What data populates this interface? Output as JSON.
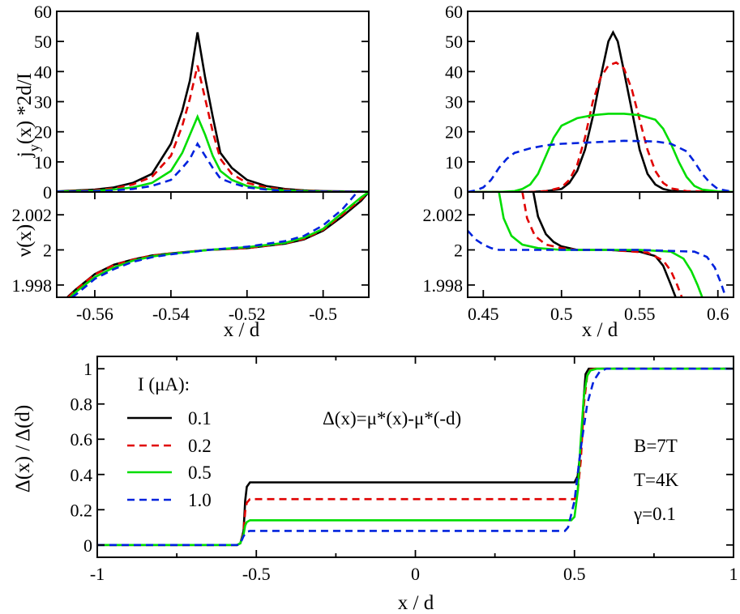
{
  "chart_data": [
    {
      "type": "line",
      "ylabel_main": "j",
      "ylabel_sub": "y",
      "ylabel_rest": "(x) *2d/I",
      "xlim": [
        -0.57,
        -0.488
      ],
      "ylim": [
        0,
        60
      ],
      "yticks": [
        0,
        10,
        20,
        30,
        40,
        50,
        60
      ],
      "ytick_labels": [
        "0",
        "10",
        "20",
        "30",
        "40",
        "50",
        "60"
      ],
      "series": [
        {
          "color": "#000000",
          "dash": "",
          "x": [
            -0.57,
            -0.56,
            -0.555,
            -0.55,
            -0.545,
            -0.54,
            -0.537,
            -0.535,
            -0.533,
            -0.531,
            -0.529,
            -0.527,
            -0.524,
            -0.52,
            -0.515,
            -0.51,
            -0.505,
            -0.5,
            -0.488
          ],
          "y": [
            0.2,
            0.8,
            1.5,
            3,
            6,
            16,
            27,
            37,
            53,
            38,
            25,
            13,
            8,
            4,
            2,
            1,
            0.5,
            0.3,
            0.1
          ]
        },
        {
          "color": "#e00000",
          "dash": "9,6",
          "x": [
            -0.57,
            -0.56,
            -0.555,
            -0.55,
            -0.545,
            -0.54,
            -0.537,
            -0.535,
            -0.533,
            -0.531,
            -0.529,
            -0.527,
            -0.524,
            -0.52,
            -0.515,
            -0.51,
            -0.505,
            -0.5,
            -0.488
          ],
          "y": [
            0.1,
            0.6,
            1.2,
            2.5,
            5,
            12,
            22,
            31,
            42,
            31,
            20,
            11,
            6,
            3,
            1.5,
            0.8,
            0.4,
            0.2,
            0.1
          ]
        },
        {
          "color": "#00dd00",
          "dash": "",
          "x": [
            -0.57,
            -0.56,
            -0.555,
            -0.55,
            -0.545,
            -0.54,
            -0.537,
            -0.535,
            -0.533,
            -0.531,
            -0.529,
            -0.527,
            -0.524,
            -0.52,
            -0.515,
            -0.51,
            -0.505,
            -0.5,
            -0.488
          ],
          "y": [
            0.1,
            0.4,
            0.8,
            1.5,
            3,
            7,
            13,
            19,
            25,
            19,
            12,
            7,
            4,
            2,
            1,
            0.5,
            0.3,
            0.1,
            0.05
          ]
        },
        {
          "color": "#0022dd",
          "dash": "9,6",
          "x": [
            -0.57,
            -0.56,
            -0.555,
            -0.55,
            -0.545,
            -0.54,
            -0.537,
            -0.535,
            -0.533,
            -0.531,
            -0.529,
            -0.527,
            -0.524,
            -0.52,
            -0.515,
            -0.51,
            -0.505,
            -0.5,
            -0.488
          ],
          "y": [
            0.1,
            0.3,
            0.5,
            1,
            2,
            4,
            8,
            11,
            16,
            12,
            8,
            4.5,
            3,
            1.5,
            0.8,
            0.4,
            0.2,
            0.1,
            0.05
          ]
        }
      ]
    },
    {
      "type": "line",
      "xlim": [
        0.44,
        0.61
      ],
      "ylim": [
        0,
        60
      ],
      "yticks": [
        0,
        10,
        20,
        30,
        40,
        50,
        60
      ],
      "ytick_labels": [
        "0",
        "10",
        "20",
        "30",
        "40",
        "50",
        "60"
      ],
      "series": [
        {
          "color": "#000000",
          "dash": "",
          "x": [
            0.44,
            0.48,
            0.49,
            0.5,
            0.505,
            0.51,
            0.515,
            0.52,
            0.525,
            0.53,
            0.533,
            0.536,
            0.54,
            0.545,
            0.55,
            0.555,
            0.56,
            0.565,
            0.57,
            0.58,
            0.61
          ],
          "y": [
            0,
            0,
            0.3,
            1,
            3,
            7,
            14,
            25,
            38,
            50,
            53,
            50,
            40,
            27,
            14,
            6,
            2.5,
            1,
            0.4,
            0.1,
            0
          ]
        },
        {
          "color": "#e00000",
          "dash": "9,6",
          "x": [
            0.44,
            0.48,
            0.49,
            0.5,
            0.505,
            0.51,
            0.515,
            0.52,
            0.525,
            0.53,
            0.535,
            0.54,
            0.545,
            0.55,
            0.555,
            0.56,
            0.565,
            0.57,
            0.58,
            0.61
          ],
          "y": [
            0,
            0,
            0.3,
            1.5,
            4,
            9,
            18,
            30,
            38,
            42,
            43,
            41,
            34,
            24,
            14,
            7,
            3,
            1.2,
            0.3,
            0
          ]
        },
        {
          "color": "#00dd00",
          "dash": "",
          "x": [
            0.44,
            0.46,
            0.47,
            0.475,
            0.48,
            0.485,
            0.49,
            0.495,
            0.5,
            0.51,
            0.52,
            0.53,
            0.54,
            0.55,
            0.56,
            0.565,
            0.57,
            0.575,
            0.58,
            0.585,
            0.59,
            0.6,
            0.61
          ],
          "y": [
            0,
            0,
            0.3,
            1,
            2.5,
            6,
            12,
            18,
            22,
            24.5,
            25.5,
            26,
            26,
            25.5,
            24,
            21,
            16,
            10,
            5,
            2,
            0.8,
            0.2,
            0
          ]
        },
        {
          "color": "#0022dd",
          "dash": "9,6",
          "x": [
            0.44,
            0.445,
            0.45,
            0.455,
            0.46,
            0.465,
            0.47,
            0.48,
            0.49,
            0.5,
            0.52,
            0.54,
            0.56,
            0.57,
            0.58,
            0.585,
            0.59,
            0.595,
            0.6,
            0.61
          ],
          "y": [
            0,
            0.5,
            1.5,
            4,
            8,
            11,
            13,
            14.5,
            15.5,
            16,
            16.5,
            17,
            16.8,
            16,
            13.5,
            10,
            6,
            3,
            1,
            0
          ]
        }
      ]
    },
    {
      "type": "line",
      "xlabel": "x / d",
      "ylabel": "ν(x)",
      "xlim": [
        -0.57,
        -0.488
      ],
      "ylim": [
        1.9973,
        2.0033
      ],
      "xticks": [
        -0.56,
        -0.54,
        -0.52,
        -0.5
      ],
      "xtick_labels": [
        "-0.56",
        "-0.54",
        "-0.52",
        "-0.5"
      ],
      "yticks": [
        1.998,
        2,
        2.002
      ],
      "ytick_labels": [
        "1.998",
        "2",
        "2.002"
      ],
      "series": [
        {
          "color": "#000000",
          "dash": "",
          "x": [
            -0.5672,
            -0.565,
            -0.56,
            -0.555,
            -0.55,
            -0.545,
            -0.54,
            -0.53,
            -0.52,
            -0.51,
            -0.505,
            -0.5,
            -0.495,
            -0.49,
            -0.488
          ],
          "y": [
            1.9973,
            1.99775,
            1.99862,
            1.99915,
            1.99945,
            1.99968,
            1.9998,
            2.0,
            2.0001,
            2.00035,
            2.0006,
            2.0011,
            2.0019,
            2.0028,
            2.0033
          ]
        },
        {
          "color": "#e00000",
          "dash": "9,6",
          "x": [
            -0.567,
            -0.565,
            -0.56,
            -0.555,
            -0.55,
            -0.545,
            -0.54,
            -0.53,
            -0.52,
            -0.51,
            -0.505,
            -0.5,
            -0.495,
            -0.49,
            -0.488
          ],
          "y": [
            1.9973,
            1.99773,
            1.9986,
            1.99913,
            1.99944,
            1.99967,
            1.9998,
            2.0,
            2.0001,
            2.00037,
            2.00063,
            2.00115,
            2.002,
            2.0029,
            2.0033
          ]
        },
        {
          "color": "#00dd00",
          "dash": "",
          "x": [
            -0.5665,
            -0.565,
            -0.56,
            -0.555,
            -0.55,
            -0.545,
            -0.54,
            -0.53,
            -0.52,
            -0.51,
            -0.505,
            -0.5,
            -0.495,
            -0.49,
            -0.488
          ],
          "y": [
            1.9973,
            1.9976,
            1.99845,
            1.999,
            1.99938,
            1.99962,
            1.99978,
            2.0,
            2.00015,
            2.0004,
            2.0007,
            2.0012,
            2.0021,
            2.003,
            2.0033
          ]
        },
        {
          "color": "#0022dd",
          "dash": "9,6",
          "x": [
            -0.566,
            -0.565,
            -0.56,
            -0.555,
            -0.55,
            -0.545,
            -0.54,
            -0.53,
            -0.52,
            -0.51,
            -0.505,
            -0.5,
            -0.495,
            -0.491
          ],
          "y": [
            1.9973,
            1.99745,
            1.99835,
            1.9989,
            1.99932,
            1.99958,
            1.99975,
            2.0,
            2.00018,
            2.0005,
            2.0008,
            2.0014,
            2.0023,
            2.0033
          ]
        }
      ]
    },
    {
      "type": "line",
      "xlabel": "x / d",
      "xlim": [
        0.44,
        0.61
      ],
      "ylim": [
        1.9973,
        2.0033
      ],
      "xticks": [
        0.45,
        0.5,
        0.55,
        0.6
      ],
      "xtick_labels": [
        "0.45",
        "0.5",
        "0.55",
        "0.6"
      ],
      "yticks": [
        1.998,
        2,
        2.002
      ],
      "ytick_labels": [
        "1.998",
        "2",
        "2.002"
      ],
      "series": [
        {
          "color": "#000000",
          "dash": "",
          "x": [
            0.482,
            0.485,
            0.49,
            0.495,
            0.5,
            0.51,
            0.53,
            0.55,
            0.56,
            0.565,
            0.57,
            0.573
          ],
          "y": [
            2.0033,
            2.0019,
            2.0009,
            2.00045,
            2.0002,
            2.0,
            2.0,
            1.9999,
            1.99965,
            1.9991,
            1.998,
            1.9973
          ]
        },
        {
          "color": "#e00000",
          "dash": "9,6",
          "x": [
            0.475,
            0.478,
            0.483,
            0.49,
            0.5,
            0.51,
            0.53,
            0.555,
            0.565,
            0.57,
            0.574,
            0.577
          ],
          "y": [
            2.0033,
            2.0018,
            2.0008,
            2.0003,
            2.0001,
            2.0,
            2.0,
            1.99985,
            1.9994,
            1.9988,
            1.998,
            1.9973
          ]
        },
        {
          "color": "#00dd00",
          "dash": "",
          "x": [
            0.46,
            0.463,
            0.468,
            0.475,
            0.485,
            0.5,
            0.55,
            0.57,
            0.578,
            0.583,
            0.587,
            0.59
          ],
          "y": [
            2.0033,
            2.0018,
            2.0008,
            2.0003,
            2.0001,
            2.0,
            2.0,
            1.9999,
            1.9995,
            1.9988,
            1.998,
            1.9973
          ]
        },
        {
          "color": "#0022dd",
          "dash": "9,6",
          "x": [
            0.44,
            0.445,
            0.45,
            0.455,
            0.46,
            0.48,
            0.55,
            0.585,
            0.593,
            0.598,
            0.602,
            0.605
          ],
          "y": [
            2.0011,
            2.0006,
            2.0003,
            2.0001,
            2.0,
            2.0,
            2.0,
            1.9999,
            1.9996,
            1.999,
            1.9981,
            1.9973
          ]
        }
      ]
    },
    {
      "type": "line",
      "xlabel": "x / d",
      "ylabel": "Δ(x) / Δ(d)",
      "xlim": [
        -1,
        1
      ],
      "ylim": [
        -0.07,
        1.07
      ],
      "xticks": [
        -1,
        -0.5,
        0,
        0.5,
        1
      ],
      "xtick_labels": [
        "-1",
        "-0.5",
        "0",
        "0.5",
        "1"
      ],
      "yticks": [
        0,
        0.2,
        0.4,
        0.6,
        0.8,
        1
      ],
      "ytick_labels": [
        "0",
        "0.2",
        "0.4",
        "0.6",
        "0.8",
        "1"
      ],
      "legend_title": "I (μA):",
      "annotations": [
        "Δ(x)=μ*(x)-μ*(-d)",
        "B=7T",
        "T=4K",
        "γ=0.1"
      ],
      "series": [
        {
          "name": "0.1",
          "color": "#000000",
          "dash": "",
          "x": [
            -1,
            -0.56,
            -0.55,
            -0.54,
            -0.535,
            -0.53,
            -0.52,
            0.5,
            0.51,
            0.52,
            0.53,
            0.535,
            0.545,
            0.56,
            1
          ],
          "y": [
            0,
            0,
            0.01,
            0.08,
            0.25,
            0.33,
            0.355,
            0.355,
            0.39,
            0.55,
            0.85,
            0.97,
            1,
            1,
            1
          ]
        },
        {
          "name": "0.2",
          "color": "#e00000",
          "dash": "9,6",
          "x": [
            -1,
            -0.56,
            -0.55,
            -0.54,
            -0.535,
            -0.53,
            -0.52,
            0.5,
            0.51,
            0.52,
            0.53,
            0.54,
            0.55,
            0.565,
            1
          ],
          "y": [
            0,
            0,
            0.01,
            0.07,
            0.19,
            0.24,
            0.26,
            0.26,
            0.3,
            0.48,
            0.8,
            0.96,
            0.995,
            1,
            1
          ]
        },
        {
          "name": "0.5",
          "color": "#00dd00",
          "dash": "",
          "x": [
            -1,
            -0.56,
            -0.55,
            -0.54,
            -0.535,
            -0.53,
            -0.52,
            0.49,
            0.5,
            0.51,
            0.52,
            0.53,
            0.54,
            0.55,
            0.57,
            1
          ],
          "y": [
            0,
            0,
            0.01,
            0.06,
            0.11,
            0.13,
            0.14,
            0.14,
            0.16,
            0.3,
            0.6,
            0.85,
            0.96,
            0.99,
            1,
            1
          ]
        },
        {
          "name": "1.0",
          "color": "#0022dd",
          "dash": "9,6",
          "x": [
            -1,
            -0.56,
            -0.55,
            -0.54,
            -0.53,
            -0.52,
            0.47,
            0.48,
            0.5,
            0.52,
            0.54,
            0.56,
            0.58,
            0.6,
            1
          ],
          "y": [
            0,
            0,
            0.01,
            0.05,
            0.075,
            0.08,
            0.08,
            0.1,
            0.25,
            0.55,
            0.8,
            0.93,
            0.985,
            1,
            1
          ]
        }
      ]
    }
  ]
}
